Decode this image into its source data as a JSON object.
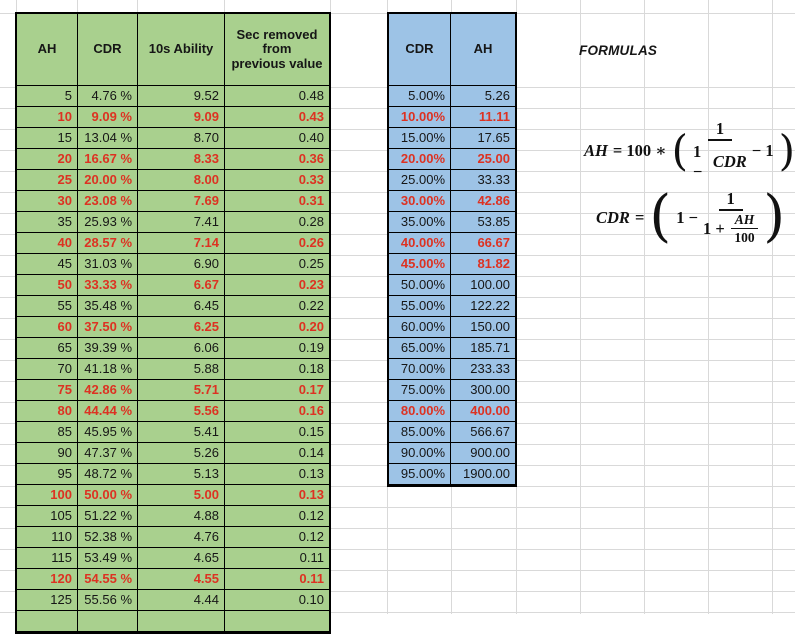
{
  "colors": {
    "green": "#a9d08e",
    "blue": "#9dc3e6",
    "red": "#dd3222",
    "border": "#000000",
    "grid": "#d9d9d9"
  },
  "left_table": {
    "headers": [
      "AH",
      "CDR",
      "10s Ability",
      "Sec removed\nfrom\nprevious value"
    ],
    "rows": [
      {
        "ah": "5",
        "cdr": "4.76 %",
        "ability": "9.52",
        "sec": "0.48",
        "red": false
      },
      {
        "ah": "10",
        "cdr": "9.09 %",
        "ability": "9.09",
        "sec": "0.43",
        "red": true
      },
      {
        "ah": "15",
        "cdr": "13.04 %",
        "ability": "8.70",
        "sec": "0.40",
        "red": false
      },
      {
        "ah": "20",
        "cdr": "16.67 %",
        "ability": "8.33",
        "sec": "0.36",
        "red": true
      },
      {
        "ah": "25",
        "cdr": "20.00 %",
        "ability": "8.00",
        "sec": "0.33",
        "red": true
      },
      {
        "ah": "30",
        "cdr": "23.08 %",
        "ability": "7.69",
        "sec": "0.31",
        "red": true
      },
      {
        "ah": "35",
        "cdr": "25.93 %",
        "ability": "7.41",
        "sec": "0.28",
        "red": false
      },
      {
        "ah": "40",
        "cdr": "28.57 %",
        "ability": "7.14",
        "sec": "0.26",
        "red": true
      },
      {
        "ah": "45",
        "cdr": "31.03 %",
        "ability": "6.90",
        "sec": "0.25",
        "red": false
      },
      {
        "ah": "50",
        "cdr": "33.33 %",
        "ability": "6.67",
        "sec": "0.23",
        "red": true
      },
      {
        "ah": "55",
        "cdr": "35.48 %",
        "ability": "6.45",
        "sec": "0.22",
        "red": false
      },
      {
        "ah": "60",
        "cdr": "37.50 %",
        "ability": "6.25",
        "sec": "0.20",
        "red": true
      },
      {
        "ah": "65",
        "cdr": "39.39 %",
        "ability": "6.06",
        "sec": "0.19",
        "red": false
      },
      {
        "ah": "70",
        "cdr": "41.18 %",
        "ability": "5.88",
        "sec": "0.18",
        "red": false
      },
      {
        "ah": "75",
        "cdr": "42.86 %",
        "ability": "5.71",
        "sec": "0.17",
        "red": true
      },
      {
        "ah": "80",
        "cdr": "44.44 %",
        "ability": "5.56",
        "sec": "0.16",
        "red": true
      },
      {
        "ah": "85",
        "cdr": "45.95 %",
        "ability": "5.41",
        "sec": "0.15",
        "red": false
      },
      {
        "ah": "90",
        "cdr": "47.37 %",
        "ability": "5.26",
        "sec": "0.14",
        "red": false
      },
      {
        "ah": "95",
        "cdr": "48.72 %",
        "ability": "5.13",
        "sec": "0.13",
        "red": false
      },
      {
        "ah": "100",
        "cdr": "50.00 %",
        "ability": "5.00",
        "sec": "0.13",
        "red": true
      },
      {
        "ah": "105",
        "cdr": "51.22 %",
        "ability": "4.88",
        "sec": "0.12",
        "red": false
      },
      {
        "ah": "110",
        "cdr": "52.38 %",
        "ability": "4.76",
        "sec": "0.12",
        "red": false
      },
      {
        "ah": "115",
        "cdr": "53.49 %",
        "ability": "4.65",
        "sec": "0.11",
        "red": false
      },
      {
        "ah": "120",
        "cdr": "54.55 %",
        "ability": "4.55",
        "sec": "0.11",
        "red": true
      },
      {
        "ah": "125",
        "cdr": "55.56 %",
        "ability": "4.44",
        "sec": "0.10",
        "red": false
      }
    ]
  },
  "right_table": {
    "headers": [
      "CDR",
      "AH"
    ],
    "rows": [
      {
        "cdr": "5.00%",
        "ah": "5.26",
        "red": false
      },
      {
        "cdr": "10.00%",
        "ah": "11.11",
        "red": true
      },
      {
        "cdr": "15.00%",
        "ah": "17.65",
        "red": false
      },
      {
        "cdr": "20.00%",
        "ah": "25.00",
        "red": true
      },
      {
        "cdr": "25.00%",
        "ah": "33.33",
        "red": false
      },
      {
        "cdr": "30.00%",
        "ah": "42.86",
        "red": true
      },
      {
        "cdr": "35.00%",
        "ah": "53.85",
        "red": false
      },
      {
        "cdr": "40.00%",
        "ah": "66.67",
        "red": true
      },
      {
        "cdr": "45.00%",
        "ah": "81.82",
        "red": true
      },
      {
        "cdr": "50.00%",
        "ah": "100.00",
        "red": false
      },
      {
        "cdr": "55.00%",
        "ah": "122.22",
        "red": false
      },
      {
        "cdr": "60.00%",
        "ah": "150.00",
        "red": false
      },
      {
        "cdr": "65.00%",
        "ah": "185.71",
        "red": false
      },
      {
        "cdr": "70.00%",
        "ah": "233.33",
        "red": false
      },
      {
        "cdr": "75.00%",
        "ah": "300.00",
        "red": false
      },
      {
        "cdr": "80.00%",
        "ah": "400.00",
        "red": true
      },
      {
        "cdr": "85.00%",
        "ah": "566.67",
        "red": false
      },
      {
        "cdr": "90.00%",
        "ah": "900.00",
        "red": false
      },
      {
        "cdr": "95.00%",
        "ah": "1900.00",
        "red": false
      }
    ]
  },
  "formulas": {
    "title": "FORMULAS",
    "f1": {
      "lhs_var": "AH",
      "lhs_rest": "= 100 ∗",
      "open_paren": "(",
      "num": "1",
      "den_plain": "1 −",
      "den_var": "CDR",
      "tail": "− 1",
      "close_paren": ")"
    },
    "f2": {
      "lhs_var": "CDR",
      "lhs_rest": "=",
      "open_paren": "(",
      "pre": "1 −",
      "num": "1",
      "den_plain": "1 +",
      "inner_num": "AH",
      "inner_den": "100",
      "close_paren": ")"
    }
  }
}
